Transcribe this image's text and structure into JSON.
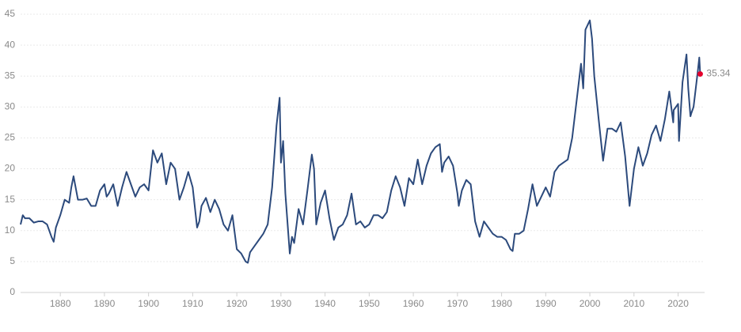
{
  "chart_data": {
    "type": "line",
    "x": [
      1871,
      1871.5,
      1872,
      1873,
      1874,
      1875,
      1876,
      1877,
      1878,
      1878.5,
      1879,
      1880,
      1881,
      1882,
      1882.5,
      1883,
      1884,
      1885,
      1886,
      1887,
      1888,
      1889,
      1890,
      1890.5,
      1891,
      1892,
      1893,
      1894,
      1895,
      1896,
      1897,
      1898,
      1899,
      1900,
      1901,
      1902,
      1903,
      1904,
      1905,
      1906,
      1907,
      1908,
      1909,
      1910,
      1911,
      1911.5,
      1912,
      1913,
      1914,
      1915,
      1916,
      1917,
      1918,
      1919,
      1920,
      1921,
      1922,
      1922.5,
      1923,
      1924,
      1925,
      1926,
      1927,
      1928,
      1929,
      1929.7,
      1930,
      1930.5,
      1931,
      1932,
      1932.5,
      1933,
      1934,
      1935,
      1936,
      1937,
      1937.5,
      1938,
      1939,
      1940,
      1941,
      1942,
      1943,
      1944,
      1945,
      1946,
      1947,
      1948,
      1949,
      1950,
      1951,
      1952,
      1953,
      1954,
      1955,
      1956,
      1957,
      1958,
      1959,
      1960,
      1961,
      1962,
      1963,
      1964,
      1965,
      1966,
      1966.5,
      1967,
      1968,
      1969,
      1970,
      1970.3,
      1971,
      1972,
      1973,
      1974,
      1975,
      1976,
      1977,
      1978,
      1979,
      1980,
      1981,
      1982,
      1982.5,
      1983,
      1984,
      1985,
      1986,
      1987,
      1988,
      1989,
      1990,
      1991,
      1992,
      1993,
      1994,
      1995,
      1996,
      1997,
      1998,
      1998.5,
      1999,
      2000,
      2000.5,
      2001,
      2002,
      2003,
      2004,
      2005,
      2006,
      2007,
      2008,
      2009,
      2010,
      2011,
      2012,
      2013,
      2014,
      2015,
      2016,
      2017,
      2018,
      2018.9,
      2019,
      2020,
      2020.2,
      2021,
      2021.9,
      2022.3,
      2022.8,
      2023,
      2023.5,
      2024,
      2024.5,
      2024.8,
      2025
    ],
    "series": [
      {
        "color": "#2c4a7c",
        "marker_color": "#e4002b",
        "values": [
          11,
          12.5,
          12,
          12,
          11.3,
          11.5,
          11.5,
          11,
          9,
          8.2,
          10.5,
          12.5,
          15,
          14.5,
          17,
          18.8,
          15,
          15,
          15.2,
          14,
          14,
          16.5,
          17.5,
          15.5,
          16,
          17.5,
          14,
          17,
          19.5,
          17.5,
          15.5,
          17,
          17.5,
          16.5,
          23,
          21,
          22.5,
          17.5,
          21,
          20,
          15,
          17,
          19.5,
          17,
          10.5,
          11.5,
          14,
          15.3,
          13,
          15,
          13.5,
          11,
          10,
          12.5,
          7,
          6.3,
          5,
          4.8,
          6.5,
          7.5,
          8.5,
          9.5,
          11,
          17,
          27,
          31.5,
          21,
          24.5,
          16,
          6.3,
          9,
          8,
          13.5,
          11,
          16.5,
          22.3,
          20,
          11,
          14.5,
          16.5,
          12,
          8.5,
          10.5,
          11,
          12.5,
          16,
          11,
          11.5,
          10.5,
          11,
          12.5,
          12.5,
          12,
          13,
          16.5,
          18.8,
          17,
          14,
          18.5,
          17.5,
          21.5,
          17.5,
          20.5,
          22.5,
          23.5,
          24,
          19.5,
          21,
          22,
          20.5,
          16,
          14,
          16.5,
          18.2,
          17.5,
          11.5,
          9,
          11.5,
          10.5,
          9.5,
          9,
          9,
          8.5,
          7,
          6.7,
          9.5,
          9.5,
          10,
          13.5,
          17.5,
          14,
          15.5,
          17,
          15.5,
          19.5,
          20.5,
          21,
          21.5,
          25,
          31,
          37,
          33,
          42.5,
          44,
          41,
          35,
          28,
          21.3,
          26.5,
          26.5,
          26,
          27.5,
          22,
          14,
          20,
          23.5,
          20.5,
          22.5,
          25.5,
          27,
          24.5,
          28,
          32.5,
          27.5,
          29.5,
          30.5,
          24.5,
          34,
          38.5,
          33,
          28.5,
          29,
          30,
          33,
          36,
          38,
          35.34
        ]
      }
    ],
    "xlim": [
      1871,
      2026
    ],
    "ylim": [
      0,
      45
    ],
    "xticks": [
      1880,
      1890,
      1900,
      1910,
      1920,
      1930,
      1940,
      1950,
      1960,
      1970,
      1980,
      1990,
      2000,
      2010,
      2020
    ],
    "yticks": [
      0,
      5,
      10,
      15,
      20,
      25,
      30,
      35,
      40,
      45
    ],
    "grid": true
  }
}
